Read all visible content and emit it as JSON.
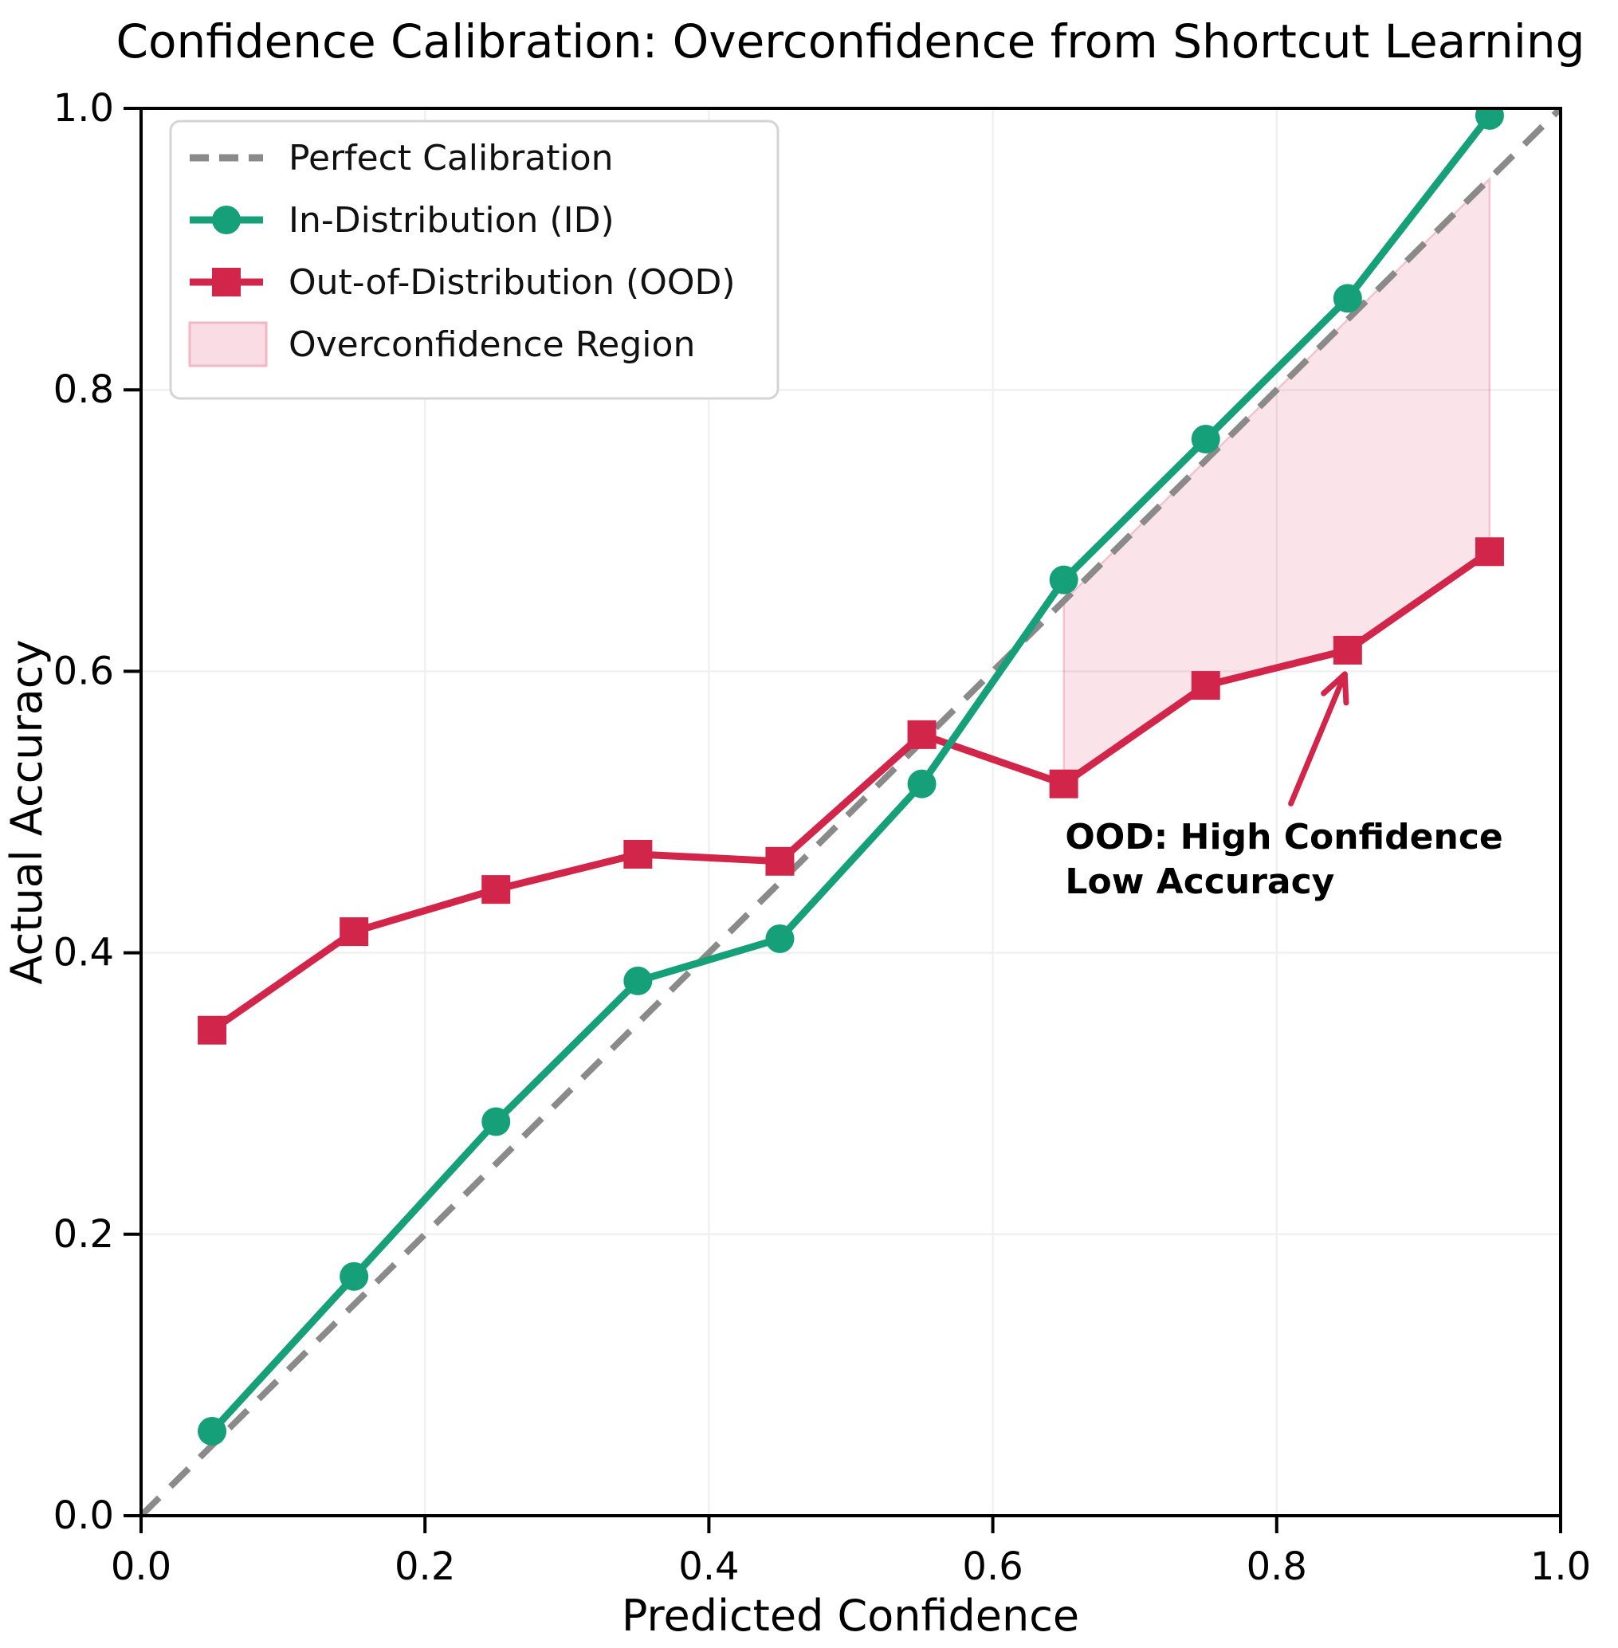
{
  "chart_data": {
    "type": "line",
    "title": "Confidence Calibration: Overconfidence from Shortcut Learning",
    "xlabel": "Predicted Confidence",
    "ylabel": "Actual Accuracy",
    "xlim": [
      0.0,
      1.0
    ],
    "ylim": [
      0.0,
      1.0
    ],
    "grid": true,
    "x_tick_labels": [
      "0.0",
      "0.2",
      "0.4",
      "0.6",
      "0.8",
      "1.0"
    ],
    "y_tick_labels": [
      "0.0",
      "0.2",
      "0.4",
      "0.6",
      "0.8",
      "1.0"
    ],
    "x_tick_values": [
      0.0,
      0.2,
      0.4,
      0.6,
      0.8,
      1.0
    ],
    "y_tick_values": [
      0.0,
      0.2,
      0.4,
      0.6,
      0.8,
      1.0
    ],
    "x": [
      0.05,
      0.15,
      0.25,
      0.35,
      0.45,
      0.55,
      0.65,
      0.75,
      0.85,
      0.95
    ],
    "series": [
      {
        "name": "Perfect Calibration",
        "style": "dashed",
        "marker": "none",
        "color": "#8a8a8a",
        "x": [
          0.0,
          1.0
        ],
        "values": [
          0.0,
          1.0
        ]
      },
      {
        "name": "In-Distribution (ID)",
        "style": "solid",
        "marker": "circle",
        "color": "#16a079",
        "values": [
          0.06,
          0.17,
          0.28,
          0.38,
          0.41,
          0.52,
          0.665,
          0.765,
          0.865,
          0.995
        ]
      },
      {
        "name": "Out-of-Distribution (OOD)",
        "style": "solid",
        "marker": "square",
        "color": "#d2254a",
        "values": [
          0.345,
          0.415,
          0.445,
          0.47,
          0.465,
          0.555,
          0.52,
          0.59,
          0.615,
          0.685
        ]
      }
    ],
    "overconfidence_region": {
      "label": "Overconfidence Region",
      "color": "#d2254a",
      "opacity": 0.12,
      "x_range": [
        0.65,
        0.95
      ],
      "upper_boundary": "perfect calibration diagonal (y = x)",
      "lower_boundary": "Out-of-Distribution (OOD) curve"
    },
    "legend": {
      "position": "upper left",
      "entries": [
        {
          "label": "Perfect Calibration",
          "swatch": "dashed-line",
          "color": "#8a8a8a"
        },
        {
          "label": "In-Distribution (ID)",
          "swatch": "line-circle",
          "color": "#16a079"
        },
        {
          "label": "Out-of-Distribution (OOD)",
          "swatch": "line-square",
          "color": "#d2254a"
        },
        {
          "label": "Overconfidence Region",
          "swatch": "patch",
          "color": "#d2254a"
        }
      ]
    },
    "annotation": {
      "lines": [
        "OOD: High Confidence",
        "Low Accuracy"
      ],
      "color": "#d2254a",
      "target_point": {
        "x": 0.85,
        "y": 0.615
      },
      "arrow_tail": {
        "x": 0.81,
        "y": 0.506
      },
      "arrow_tip": {
        "x": 0.848,
        "y": 0.598
      },
      "text_position": {
        "x": 0.651,
        "y": 0.474
      }
    },
    "colors": {
      "id_series": "#16a079",
      "ood_series": "#d2254a",
      "diagonal": "#8a8a8a",
      "grid": "#f0f0f0",
      "region_fill": "#fadde4",
      "legend_border": "#d4d4d4"
    }
  }
}
